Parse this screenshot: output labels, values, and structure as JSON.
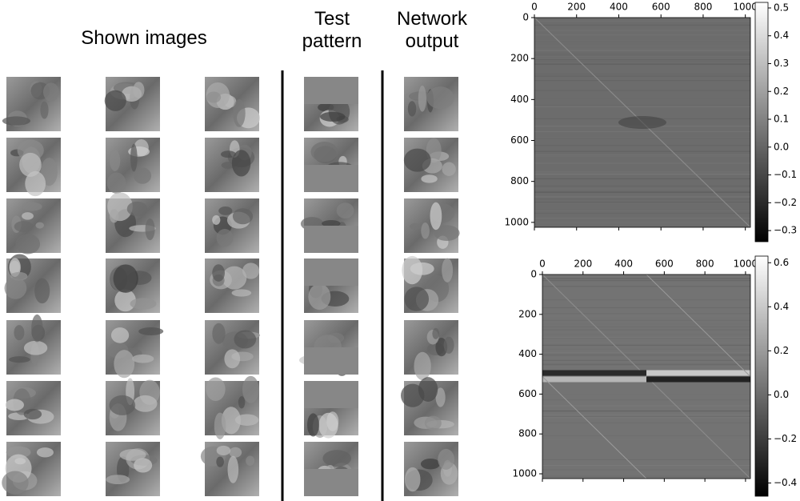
{
  "headings": {
    "shown": "Shown images",
    "test": "Test pattern",
    "output": "Network output"
  },
  "chart_data": [
    {
      "type": "heatmap",
      "xlim": [
        0,
        1024
      ],
      "ylim": [
        0,
        1024
      ],
      "y_inverted": true,
      "xticks": [
        0,
        200,
        400,
        600,
        800,
        1000
      ],
      "yticks": [
        0,
        200,
        400,
        600,
        800,
        1000
      ],
      "clim": [
        -0.34,
        0.52
      ],
      "cticks": [
        {
          "value": -0.3,
          "label": "−0.3"
        },
        {
          "value": -0.2,
          "label": "−0.2"
        },
        {
          "value": -0.1,
          "label": "−0.1"
        },
        {
          "value": 0,
          "label": "0.0"
        },
        0.1,
        0.2,
        0.3,
        0.4,
        0.5
      ]
    },
    {
      "type": "heatmap",
      "xlim": [
        0,
        1024
      ],
      "ylim": [
        0,
        1024
      ],
      "y_inverted": true,
      "xticks": [
        0,
        200,
        400,
        600,
        800,
        1000
      ],
      "yticks": [
        0,
        200,
        400,
        600,
        800,
        1000
      ],
      "clim": [
        -0.46,
        0.63
      ],
      "cticks": [
        {
          "value": -0.4,
          "label": "−0.4"
        },
        {
          "value": -0.2,
          "label": "−0.2"
        },
        {
          "value": 0,
          "label": "0.0"
        },
        0.2,
        0.4,
        0.6
      ]
    }
  ]
}
